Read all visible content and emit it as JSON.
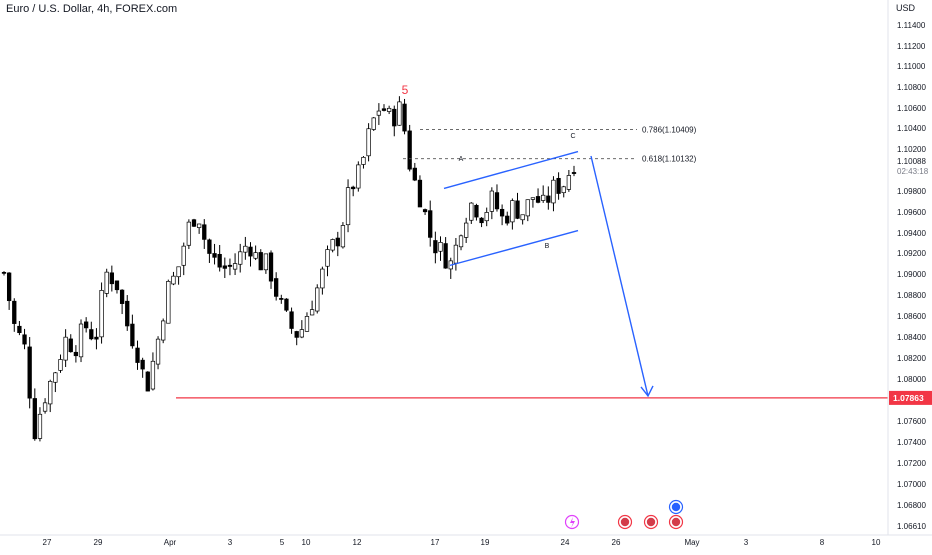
{
  "header": {
    "title": "Euro / U.S. Dollar, 4h, FOREX.com"
  },
  "y_axis": {
    "currency": "USD",
    "ticks": [
      "1.11400",
      "1.11200",
      "1.11000",
      "1.10800",
      "1.10600",
      "1.10400",
      "1.10200",
      "1.09800",
      "1.09600",
      "1.09400",
      "1.09200",
      "1.09000",
      "1.08800",
      "1.08600",
      "1.08400",
      "1.08200",
      "1.08000",
      "1.07600",
      "1.07400",
      "1.07200",
      "1.07000",
      "1.06800",
      "1.06610"
    ],
    "current_price": "1.10088",
    "countdown": "02:43:18",
    "support_badge": "1.07863"
  },
  "x_axis": {
    "ticks": [
      "27",
      "29",
      "Apr",
      "3",
      "5",
      "10",
      "12",
      "17",
      "19",
      "24",
      "26",
      "May",
      "3",
      "8",
      "10"
    ]
  },
  "annotations": {
    "wave5": "5",
    "waveA": "A",
    "waveB": "B",
    "waveC": "C",
    "fib786": "0.786(1.10409)",
    "fib618": "0.618(1.10132)"
  },
  "colors": {
    "up": "#ffffff",
    "down": "#000000",
    "channel": "#2962ff",
    "support": "#f23645",
    "wave5": "#f23645",
    "text": "#131722",
    "grid": "#e0e3eb"
  },
  "chart_data": {
    "type": "candlestick",
    "title": "Euro / U.S. Dollar, 4h, FOREX.com",
    "ylim": [
      1.0661,
      1.1158
    ],
    "x_ticks": [
      "27",
      "29",
      "Apr",
      "3",
      "5",
      "10",
      "12",
      "17",
      "19",
      "24",
      "26",
      "May",
      "3",
      "8",
      "10"
    ],
    "waypoints": [
      1.0905,
      1.0855,
      1.0835,
      1.0755,
      1.0788,
      1.0812,
      1.0842,
      1.0835,
      1.0855,
      1.0842,
      1.0905,
      1.0898,
      1.0858,
      1.0835,
      1.0795,
      1.0835,
      1.0888,
      1.0905,
      1.0945,
      1.0965,
      1.0925,
      1.0912,
      1.0908,
      1.0918,
      1.0935,
      1.0915,
      1.0912,
      1.0878,
      1.0855,
      1.0845,
      1.0872,
      1.0895,
      1.0925,
      1.0942,
      1.0985,
      1.1,
      1.1042,
      1.1065,
      1.105,
      1.1062,
      1.1,
      1.0975,
      1.0935,
      1.0925,
      1.0912,
      1.0955,
      1.0972,
      1.096,
      1.0975,
      1.0955,
      1.0968,
      1.0962,
      1.0978,
      1.0968,
      1.0985,
      1.099,
      1.101
    ],
    "support_level": 1.07863,
    "fib_levels": [
      {
        "label": "0.786(1.10409)",
        "value": 1.10409
      },
      {
        "label": "0.618(1.10132)",
        "value": 1.10132
      }
    ],
    "channel": {
      "upper": [
        1.0985,
        1.102
      ],
      "lower": [
        1.0912,
        1.0945
      ]
    },
    "projection_target": 1.07863,
    "wave_labels": [
      "5",
      "A",
      "B",
      "C"
    ]
  }
}
